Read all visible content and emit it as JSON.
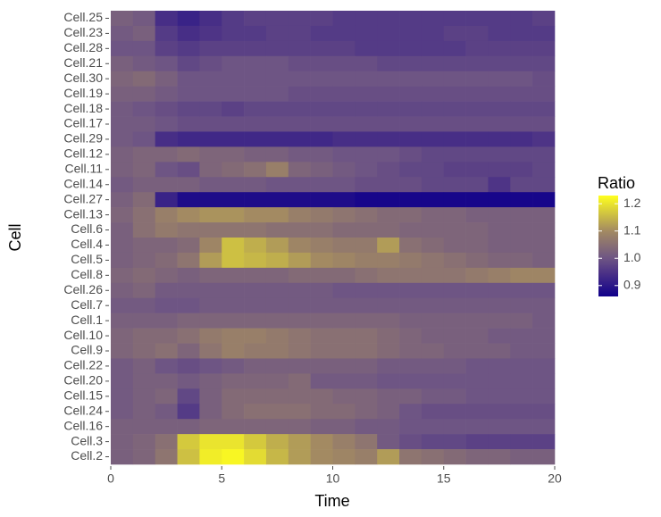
{
  "chart_data": {
    "type": "heatmap",
    "x_label": "Time",
    "y_label": "Cell",
    "legend_title": "Ratio",
    "categories": [
      "Cell.25",
      "Cell.23",
      "Cell.28",
      "Cell.21",
      "Cell.30",
      "Cell.19",
      "Cell.18",
      "Cell.17",
      "Cell.29",
      "Cell.12",
      "Cell.11",
      "Cell.14",
      "Cell.27",
      "Cell.13",
      "Cell.6",
      "Cell.4",
      "Cell.5",
      "Cell.8",
      "Cell.26",
      "Cell.7",
      "Cell.1",
      "Cell.10",
      "Cell.9",
      "Cell.22",
      "Cell.20",
      "Cell.15",
      "Cell.24",
      "Cell.16",
      "Cell.3",
      "Cell.2"
    ],
    "x": [
      0.5,
      1.5,
      2.5,
      3.5,
      4.5,
      5.5,
      6.5,
      7.5,
      8.5,
      9.5,
      10.5,
      11.5,
      12.5,
      13.5,
      14.5,
      15.5,
      16.5,
      17.5,
      18.5,
      19.5
    ],
    "xlim": [
      0,
      20
    ],
    "xticks": [
      0,
      5,
      10,
      15,
      20
    ],
    "zlim": [
      0.86,
      1.23
    ],
    "zticks": [
      0.9,
      {
        "value": 1.0,
        "label": "1.0"
      },
      1.1,
      1.2
    ],
    "colorscale": [
      [
        0,
        "#10008a"
      ],
      [
        0.243,
        "#4e3486"
      ],
      [
        0.378,
        "#6e5584"
      ],
      [
        0.649,
        "#a38a62"
      ],
      [
        1,
        "#ffff1e"
      ]
    ],
    "values": [
      [
        1.02,
        1.01,
        0.94,
        0.92,
        0.94,
        0.96,
        0.97,
        0.97,
        0.97,
        0.97,
        0.96,
        0.96,
        0.96,
        0.96,
        0.96,
        0.96,
        0.96,
        0.96,
        0.96,
        0.97
      ],
      [
        1.01,
        1.02,
        0.96,
        0.94,
        0.95,
        0.96,
        0.96,
        0.97,
        0.97,
        0.96,
        0.96,
        0.96,
        0.96,
        0.96,
        0.96,
        0.97,
        0.97,
        0.96,
        0.96,
        0.96
      ],
      [
        1.0,
        1.0,
        0.97,
        0.96,
        0.97,
        0.97,
        0.97,
        0.97,
        0.97,
        0.97,
        0.97,
        0.96,
        0.96,
        0.96,
        0.96,
        0.96,
        0.97,
        0.97,
        0.97,
        0.97
      ],
      [
        1.02,
        1.01,
        1.0,
        0.98,
        0.99,
        1.0,
        1.0,
        1.0,
        0.99,
        0.99,
        0.99,
        0.99,
        0.98,
        0.98,
        0.98,
        0.98,
        0.98,
        0.98,
        0.98,
        0.98
      ],
      [
        1.03,
        1.04,
        1.02,
        1.0,
        1.0,
        1.0,
        1.0,
        1.0,
        1.0,
        1.0,
        1.0,
        1.0,
        1.0,
        1.0,
        1.0,
        1.0,
        1.0,
        1.0,
        1.0,
        0.99
      ],
      [
        1.02,
        1.02,
        1.01,
        1.0,
        1.0,
        1.0,
        1.0,
        1.0,
        0.99,
        0.99,
        0.99,
        0.99,
        0.99,
        0.99,
        0.99,
        0.99,
        0.99,
        0.99,
        0.99,
        0.99
      ],
      [
        1.01,
        1.0,
        0.99,
        0.98,
        0.98,
        0.97,
        0.98,
        0.98,
        0.98,
        0.98,
        0.98,
        0.98,
        0.98,
        0.98,
        0.98,
        0.98,
        0.98,
        0.98,
        0.98,
        0.98
      ],
      [
        1.01,
        1.01,
        1.0,
        0.99,
        0.99,
        0.99,
        0.99,
        0.99,
        0.99,
        0.99,
        0.99,
        0.99,
        0.99,
        0.99,
        0.99,
        0.99,
        0.99,
        0.99,
        0.99,
        0.99
      ],
      [
        1.01,
        1.0,
        0.94,
        0.93,
        0.93,
        0.93,
        0.93,
        0.93,
        0.93,
        0.93,
        0.94,
        0.94,
        0.94,
        0.94,
        0.94,
        0.94,
        0.94,
        0.94,
        0.94,
        0.95
      ],
      [
        1.02,
        1.03,
        1.03,
        1.04,
        1.03,
        1.03,
        1.02,
        1.02,
        1.01,
        1.01,
        1.0,
        1.0,
        1.0,
        0.99,
        0.98,
        0.98,
        0.98,
        0.98,
        0.98,
        0.98
      ],
      [
        1.02,
        1.03,
        1.0,
        0.99,
        1.03,
        1.04,
        1.05,
        1.08,
        1.03,
        1.02,
        1.01,
        1.0,
        0.99,
        0.98,
        0.98,
        0.97,
        0.97,
        0.97,
        0.97,
        0.98
      ],
      [
        1.01,
        1.02,
        1.02,
        1.02,
        1.01,
        1.01,
        1.01,
        1.0,
        1.0,
        1.0,
        1.0,
        0.99,
        0.99,
        0.99,
        0.98,
        0.98,
        0.98,
        0.95,
        0.98,
        0.98
      ],
      [
        1.02,
        1.04,
        0.92,
        0.88,
        0.88,
        0.88,
        0.88,
        0.88,
        0.88,
        0.88,
        0.88,
        0.87,
        0.87,
        0.87,
        0.87,
        0.87,
        0.87,
        0.87,
        0.87,
        0.87
      ],
      [
        1.03,
        1.05,
        1.08,
        1.1,
        1.11,
        1.11,
        1.1,
        1.1,
        1.08,
        1.07,
        1.06,
        1.05,
        1.04,
        1.04,
        1.03,
        1.03,
        1.02,
        1.02,
        1.02,
        1.02
      ],
      [
        1.02,
        1.05,
        1.07,
        1.06,
        1.06,
        1.06,
        1.06,
        1.05,
        1.05,
        1.05,
        1.04,
        1.04,
        1.04,
        1.03,
        1.03,
        1.03,
        1.03,
        1.02,
        1.02,
        1.02
      ],
      [
        1.02,
        1.03,
        1.03,
        1.04,
        1.09,
        1.16,
        1.14,
        1.12,
        1.09,
        1.08,
        1.07,
        1.07,
        1.12,
        1.05,
        1.04,
        1.03,
        1.03,
        1.02,
        1.02,
        1.02
      ],
      [
        1.02,
        1.03,
        1.04,
        1.06,
        1.12,
        1.16,
        1.15,
        1.14,
        1.12,
        1.1,
        1.09,
        1.08,
        1.08,
        1.07,
        1.06,
        1.05,
        1.04,
        1.03,
        1.03,
        1.02
      ],
      [
        1.03,
        1.04,
        1.03,
        1.02,
        1.03,
        1.03,
        1.03,
        1.03,
        1.04,
        1.04,
        1.04,
        1.05,
        1.06,
        1.06,
        1.06,
        1.06,
        1.07,
        1.08,
        1.09,
        1.09
      ],
      [
        1.02,
        1.03,
        1.01,
        1.01,
        1.01,
        1.01,
        1.01,
        1.01,
        1.01,
        1.01,
        1.0,
        1.0,
        1.0,
        1.0,
        1.0,
        1.0,
        1.0,
        1.0,
        1.0,
        1.0
      ],
      [
        1.01,
        1.01,
        1.0,
        1.0,
        1.01,
        1.01,
        1.01,
        1.01,
        1.01,
        1.01,
        1.01,
        1.01,
        1.01,
        1.01,
        1.01,
        1.01,
        1.01,
        1.01,
        1.01,
        1.01
      ],
      [
        1.02,
        1.02,
        1.02,
        1.03,
        1.03,
        1.03,
        1.03,
        1.03,
        1.03,
        1.03,
        1.03,
        1.03,
        1.03,
        1.02,
        1.02,
        1.02,
        1.02,
        1.02,
        1.02,
        1.01
      ],
      [
        1.03,
        1.04,
        1.04,
        1.05,
        1.07,
        1.08,
        1.08,
        1.07,
        1.06,
        1.05,
        1.05,
        1.05,
        1.04,
        1.03,
        1.02,
        1.02,
        1.02,
        1.01,
        1.01,
        1.01
      ],
      [
        1.03,
        1.04,
        1.05,
        1.03,
        1.06,
        1.08,
        1.07,
        1.07,
        1.06,
        1.05,
        1.05,
        1.05,
        1.04,
        1.03,
        1.03,
        1.02,
        1.02,
        1.02,
        1.01,
        1.01
      ],
      [
        1.01,
        1.02,
        1.0,
        0.99,
        1.0,
        1.01,
        1.02,
        1.02,
        1.02,
        1.02,
        1.02,
        1.02,
        1.01,
        1.01,
        1.01,
        1.01,
        1.0,
        1.0,
        1.0,
        1.0
      ],
      [
        1.01,
        1.02,
        1.02,
        1.01,
        1.02,
        1.03,
        1.03,
        1.03,
        1.04,
        1.01,
        1.01,
        1.01,
        1.0,
        1.0,
        1.0,
        1.0,
        1.0,
        1.0,
        1.0,
        1.0
      ],
      [
        1.01,
        1.02,
        1.03,
        0.98,
        1.02,
        1.04,
        1.04,
        1.04,
        1.04,
        1.04,
        1.03,
        1.03,
        1.02,
        1.02,
        1.01,
        1.01,
        1.0,
        1.0,
        1.0,
        1.0
      ],
      [
        1.01,
        1.02,
        1.01,
        0.96,
        1.02,
        1.04,
        1.05,
        1.05,
        1.05,
        1.04,
        1.04,
        1.03,
        1.02,
        1.0,
        0.99,
        0.99,
        0.99,
        0.99,
        0.99,
        0.99
      ],
      [
        1.02,
        1.02,
        1.02,
        1.02,
        1.03,
        1.03,
        1.03,
        1.03,
        1.03,
        1.02,
        1.02,
        1.01,
        1.01,
        1.0,
        1.0,
        1.0,
        1.0,
        1.0,
        1.0,
        1.0
      ],
      [
        1.02,
        1.03,
        1.05,
        1.17,
        1.2,
        1.2,
        1.17,
        1.14,
        1.12,
        1.1,
        1.08,
        1.06,
        1.01,
        0.99,
        0.98,
        0.98,
        0.97,
        0.97,
        0.97,
        0.97
      ],
      [
        1.02,
        1.03,
        1.06,
        1.16,
        1.21,
        1.22,
        1.19,
        1.15,
        1.12,
        1.1,
        1.09,
        1.08,
        1.12,
        1.06,
        1.05,
        1.04,
        1.03,
        1.03,
        1.02,
        1.02
      ]
    ]
  }
}
